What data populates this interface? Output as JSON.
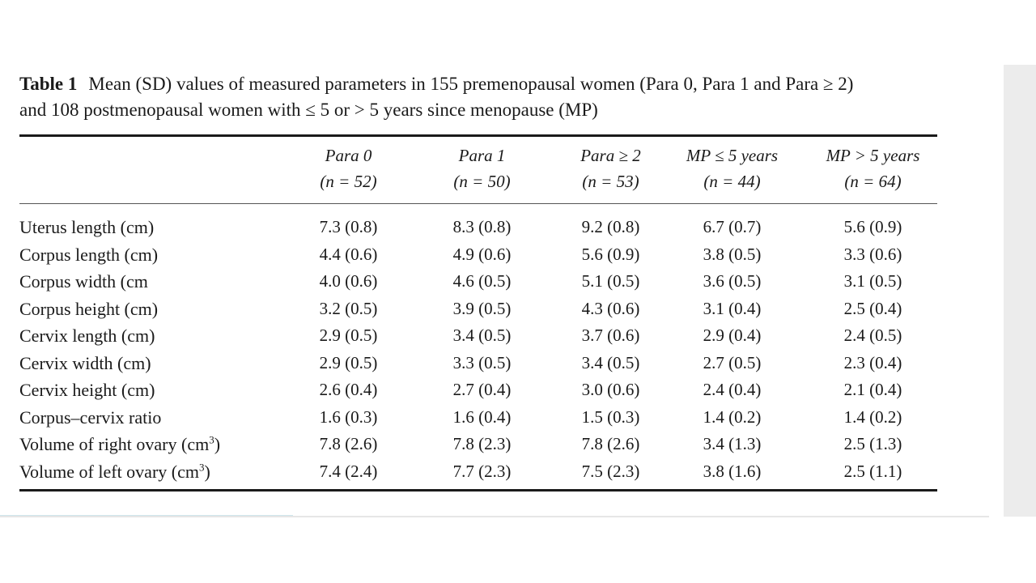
{
  "caption": {
    "label": "Table 1",
    "line1": "Mean (SD) values of measured parameters in 155 premenopausal women (Para 0, Para 1 and Para ≥ 2)",
    "line2": "and 108 postmenopausal women with ≤ 5  or > 5 years since menopause (MP)"
  },
  "columns": [
    {
      "title": "Para 0",
      "n": "(n = 52)"
    },
    {
      "title": "Para 1",
      "n": "(n = 50)"
    },
    {
      "title": "Para ≥ 2",
      "n": "(n = 53)"
    },
    {
      "title": "MP ≤ 5 years",
      "n": "(n = 44)"
    },
    {
      "title": "MP > 5 years",
      "n": "(n = 64)"
    }
  ],
  "rows": [
    {
      "label": "Uterus length (cm)",
      "sup": "",
      "tail": "",
      "values": [
        "7.3 (0.8)",
        "8.3 (0.8)",
        "9.2 (0.8)",
        "6.7 (0.7)",
        "5.6 (0.9)"
      ]
    },
    {
      "label": "Corpus length (cm)",
      "sup": "",
      "tail": "",
      "values": [
        "4.4 (0.6)",
        "4.9 (0.6)",
        "5.6 (0.9)",
        "3.8 (0.5)",
        "3.3 (0.6)"
      ]
    },
    {
      "label": "Corpus width (cm",
      "sup": "",
      "tail": "",
      "values": [
        "4.0 (0.6)",
        "4.6 (0.5)",
        "5.1 (0.5)",
        "3.6 (0.5)",
        "3.1 (0.5)"
      ]
    },
    {
      "label": "Corpus height (cm)",
      "sup": "",
      "tail": "",
      "values": [
        "3.2 (0.5)",
        "3.9 (0.5)",
        "4.3 (0.6)",
        "3.1 (0.4)",
        "2.5 (0.4)"
      ]
    },
    {
      "label": "Cervix length (cm)",
      "sup": "",
      "tail": "",
      "values": [
        "2.9 (0.5)",
        "3.4 (0.5)",
        "3.7 (0.6)",
        "2.9 (0.4)",
        "2.4 (0.5)"
      ]
    },
    {
      "label": "Cervix width (cm)",
      "sup": "",
      "tail": "",
      "values": [
        "2.9 (0.5)",
        "3.3 (0.5)",
        "3.4 (0.5)",
        "2.7 (0.5)",
        "2.3 (0.4)"
      ]
    },
    {
      "label": "Cervix height (cm)",
      "sup": "",
      "tail": "",
      "values": [
        "2.6 (0.4)",
        "2.7 (0.4)",
        "3.0 (0.6)",
        "2.4 (0.4)",
        "2.1 (0.4)"
      ]
    },
    {
      "label": "Corpus–cervix ratio",
      "sup": "",
      "tail": "",
      "values": [
        "1.6 (0.3)",
        "1.6 (0.4)",
        "1.5 (0.3)",
        "1.4 (0.2)",
        "1.4 (0.2)"
      ]
    },
    {
      "label": "Volume of right ovary (cm",
      "sup": "3",
      "tail": ")",
      "values": [
        "7.8 (2.6)",
        "7.8 (2.3)",
        "7.8 (2.6)",
        "3.4 (1.3)",
        "2.5 (1.3)"
      ]
    },
    {
      "label": "Volume of left ovary (cm",
      "sup": "3",
      "tail": ")",
      "values": [
        "7.4 (2.4)",
        "7.7 (2.3)",
        "7.5 (2.3)",
        "3.8 (1.6)",
        "2.5 (1.1)"
      ]
    }
  ]
}
